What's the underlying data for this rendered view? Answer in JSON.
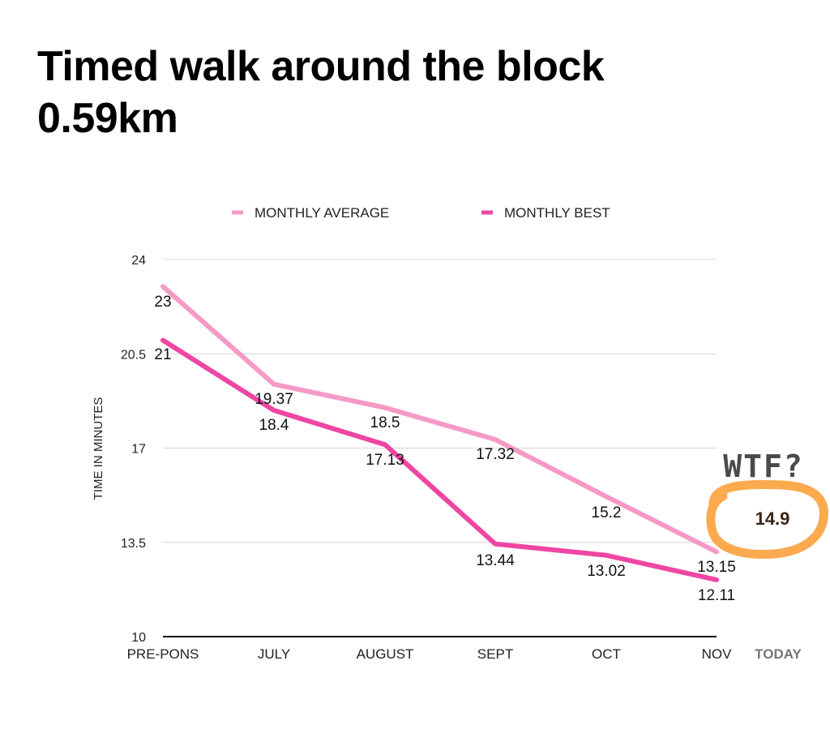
{
  "title": {
    "line1": "Timed walk around the block",
    "line2": "0.59km"
  },
  "chart_data": {
    "type": "line",
    "title": "Timed walk around the block 0.59km",
    "xlabel": "",
    "ylabel": "TIME IN MINUTES",
    "categories": [
      "PRE-PONS",
      "JULY",
      "AUGUST",
      "SEPT",
      "OCT",
      "NOV"
    ],
    "ylim": [
      10,
      24
    ],
    "yticks": [
      10,
      13.5,
      17,
      20.5,
      24
    ],
    "grid": true,
    "legend_position": "top",
    "series": [
      {
        "name": "MONTHLY AVERAGE",
        "color": "#f59ac6",
        "values": [
          23,
          19.37,
          18.5,
          17.32,
          15.2,
          13.15
        ],
        "labels": [
          "23",
          "19.37",
          "18.5",
          "17.32",
          "15.2",
          "13.15"
        ]
      },
      {
        "name": "MONTHLY BEST",
        "color": "#ee46a3",
        "values": [
          21,
          18.4,
          17.13,
          13.44,
          13.02,
          12.11
        ],
        "labels": [
          "21",
          "18.4",
          "17.13",
          "13.44",
          "13.02",
          "12.11"
        ]
      }
    ],
    "annotations": {
      "extra_category": "TODAY",
      "exclamation": "WTF?",
      "today_value": "14.9",
      "highlight_color": "#fbaa4e"
    }
  }
}
